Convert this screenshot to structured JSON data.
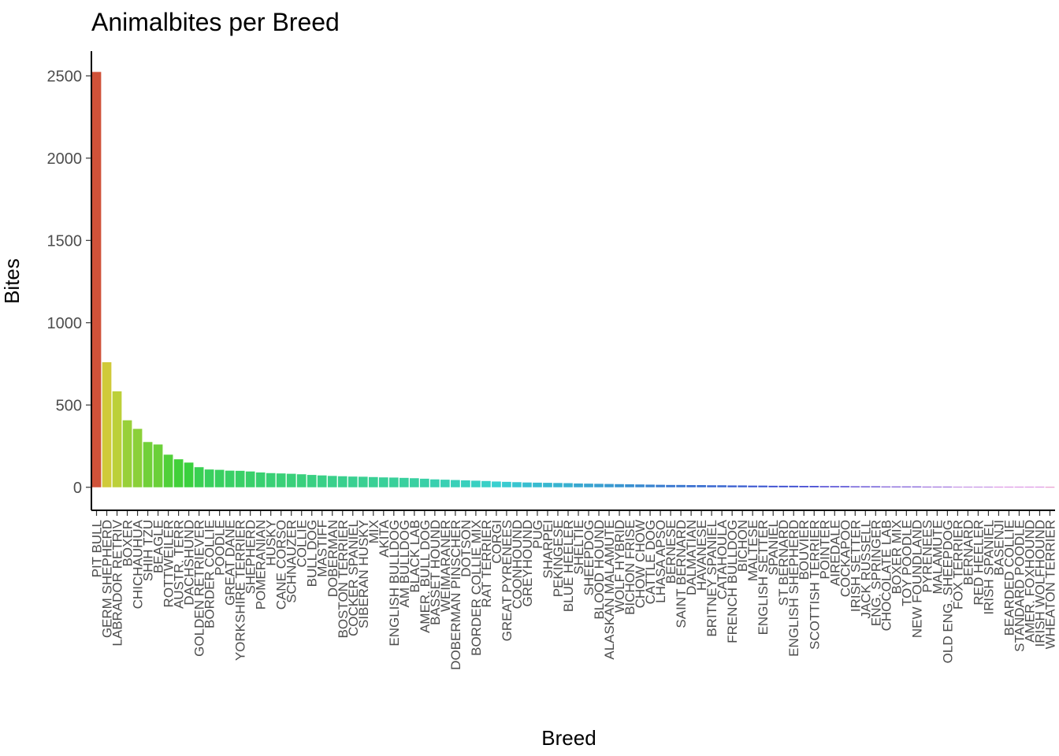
{
  "chart_data": {
    "type": "bar",
    "title": "Animalbites per Breed",
    "xlabel": "Breed",
    "ylabel": "Bites",
    "ylim": [
      -140,
      2650
    ],
    "yticks": [
      0,
      500,
      1000,
      1500,
      2000,
      2500
    ],
    "legend": "none",
    "grid": false,
    "categories": [
      "PIT BULL",
      "GERM SHEPHERD",
      "LABRADOR RETRIV",
      "BOXER",
      "CHICHAUHUA",
      "SHIH TZU",
      "BEAGLE",
      "ROTTWEILER",
      "AUSTR. TERR",
      "DACHSHUND",
      "GOLDEN RETRIEVER",
      "BORDER COLLIE",
      "POODLE",
      "GREAT DANE",
      "YORKSHIRE TERRIER",
      "SHEPHERD",
      "POMERANIAN",
      "HUSKY",
      "CANE CORSO",
      "SCHNAUZER",
      "COLLIE",
      "BULL DOG",
      "MASTIFF",
      "DOBERMAN",
      "BOSTON TERRIER",
      "COCKER SPANIEL",
      "SIBERAN HUSKY",
      "MIX",
      "AKITA",
      "ENGLISH BULLDOG",
      "AM BULLDOG",
      "BLACK LAB",
      "AMER. BULL DOG",
      "BASSET HOUND",
      "WEIMARANER",
      "DOBERMAN PINSCHER",
      "DOTSON",
      "BORDER COLLIE MIX",
      "RAT TERRIER",
      "CORGI",
      "GREAT PYRENEES",
      "COONHOUND",
      "GREYHOUND",
      "PUG",
      "SHARPEI",
      "PEKINGESE",
      "BLUE HEELER",
      "SHELTIE",
      "SHEEPDOG",
      "BLOOD HOUND",
      "ALASKAN MALAMUTE",
      "WOLF HYBRID",
      "BICHON FRISE",
      "CHOW CHOW",
      "CATTLE DOG",
      "LHASA APSO",
      "BERNESE",
      "SAINT BERNARD",
      "DALMATIAN",
      "HAVANESE",
      "BRITNEY SPANIEL",
      "CATAHOULA",
      "FRENCH BULLDOG",
      "BICHON",
      "MALTESE",
      "ENGLISH SETTER",
      "SPANIEL",
      "ST BERNARD",
      "ENGLISH SHEPHERD",
      "BOUVIER",
      "SCOTTISH TERRIER",
      "POINTER",
      "AIREDALE",
      "COCKAPOO",
      "IRISH SETTER",
      "JACK RUSSELL",
      "ENG. SPRINGER",
      "CHOCOLATE LAB",
      "BOXER MIX",
      "TOY POODLE",
      "NEW FOUNDLAND",
      "PYRENEES",
      "MALAMUTE",
      "OLD ENG. SHEEPDOG",
      "FOX TERRIER",
      "BERNARD",
      "RED HEELER",
      "IRISH SPANIEL",
      "BASENJI",
      "BEARDED COLLIE",
      "STANDARD POODLE",
      "AMER. FOXHOUND",
      "IRISH WOLFHOUND",
      "WHEATON TERRIER"
    ],
    "values": [
      2524,
      760,
      583,
      407,
      355,
      275,
      260,
      198,
      170,
      150,
      122,
      108,
      106,
      101,
      100,
      96,
      90,
      86,
      84,
      82,
      79,
      75,
      72,
      69,
      67,
      65,
      64,
      62,
      60,
      59,
      57,
      55,
      52,
      48,
      46,
      44,
      42,
      40,
      38,
      35,
      33,
      31,
      29,
      28,
      27,
      26,
      25,
      23,
      22,
      21,
      20,
      19,
      18,
      17,
      16,
      15,
      14,
      14,
      13,
      13,
      12,
      12,
      11,
      11,
      10,
      10,
      9,
      9,
      9,
      8,
      8,
      7,
      7,
      7,
      6,
      6,
      6,
      5,
      5,
      5,
      5,
      4,
      4,
      4,
      3,
      3,
      3,
      3,
      2,
      2,
      2,
      2,
      2,
      1
    ]
  }
}
